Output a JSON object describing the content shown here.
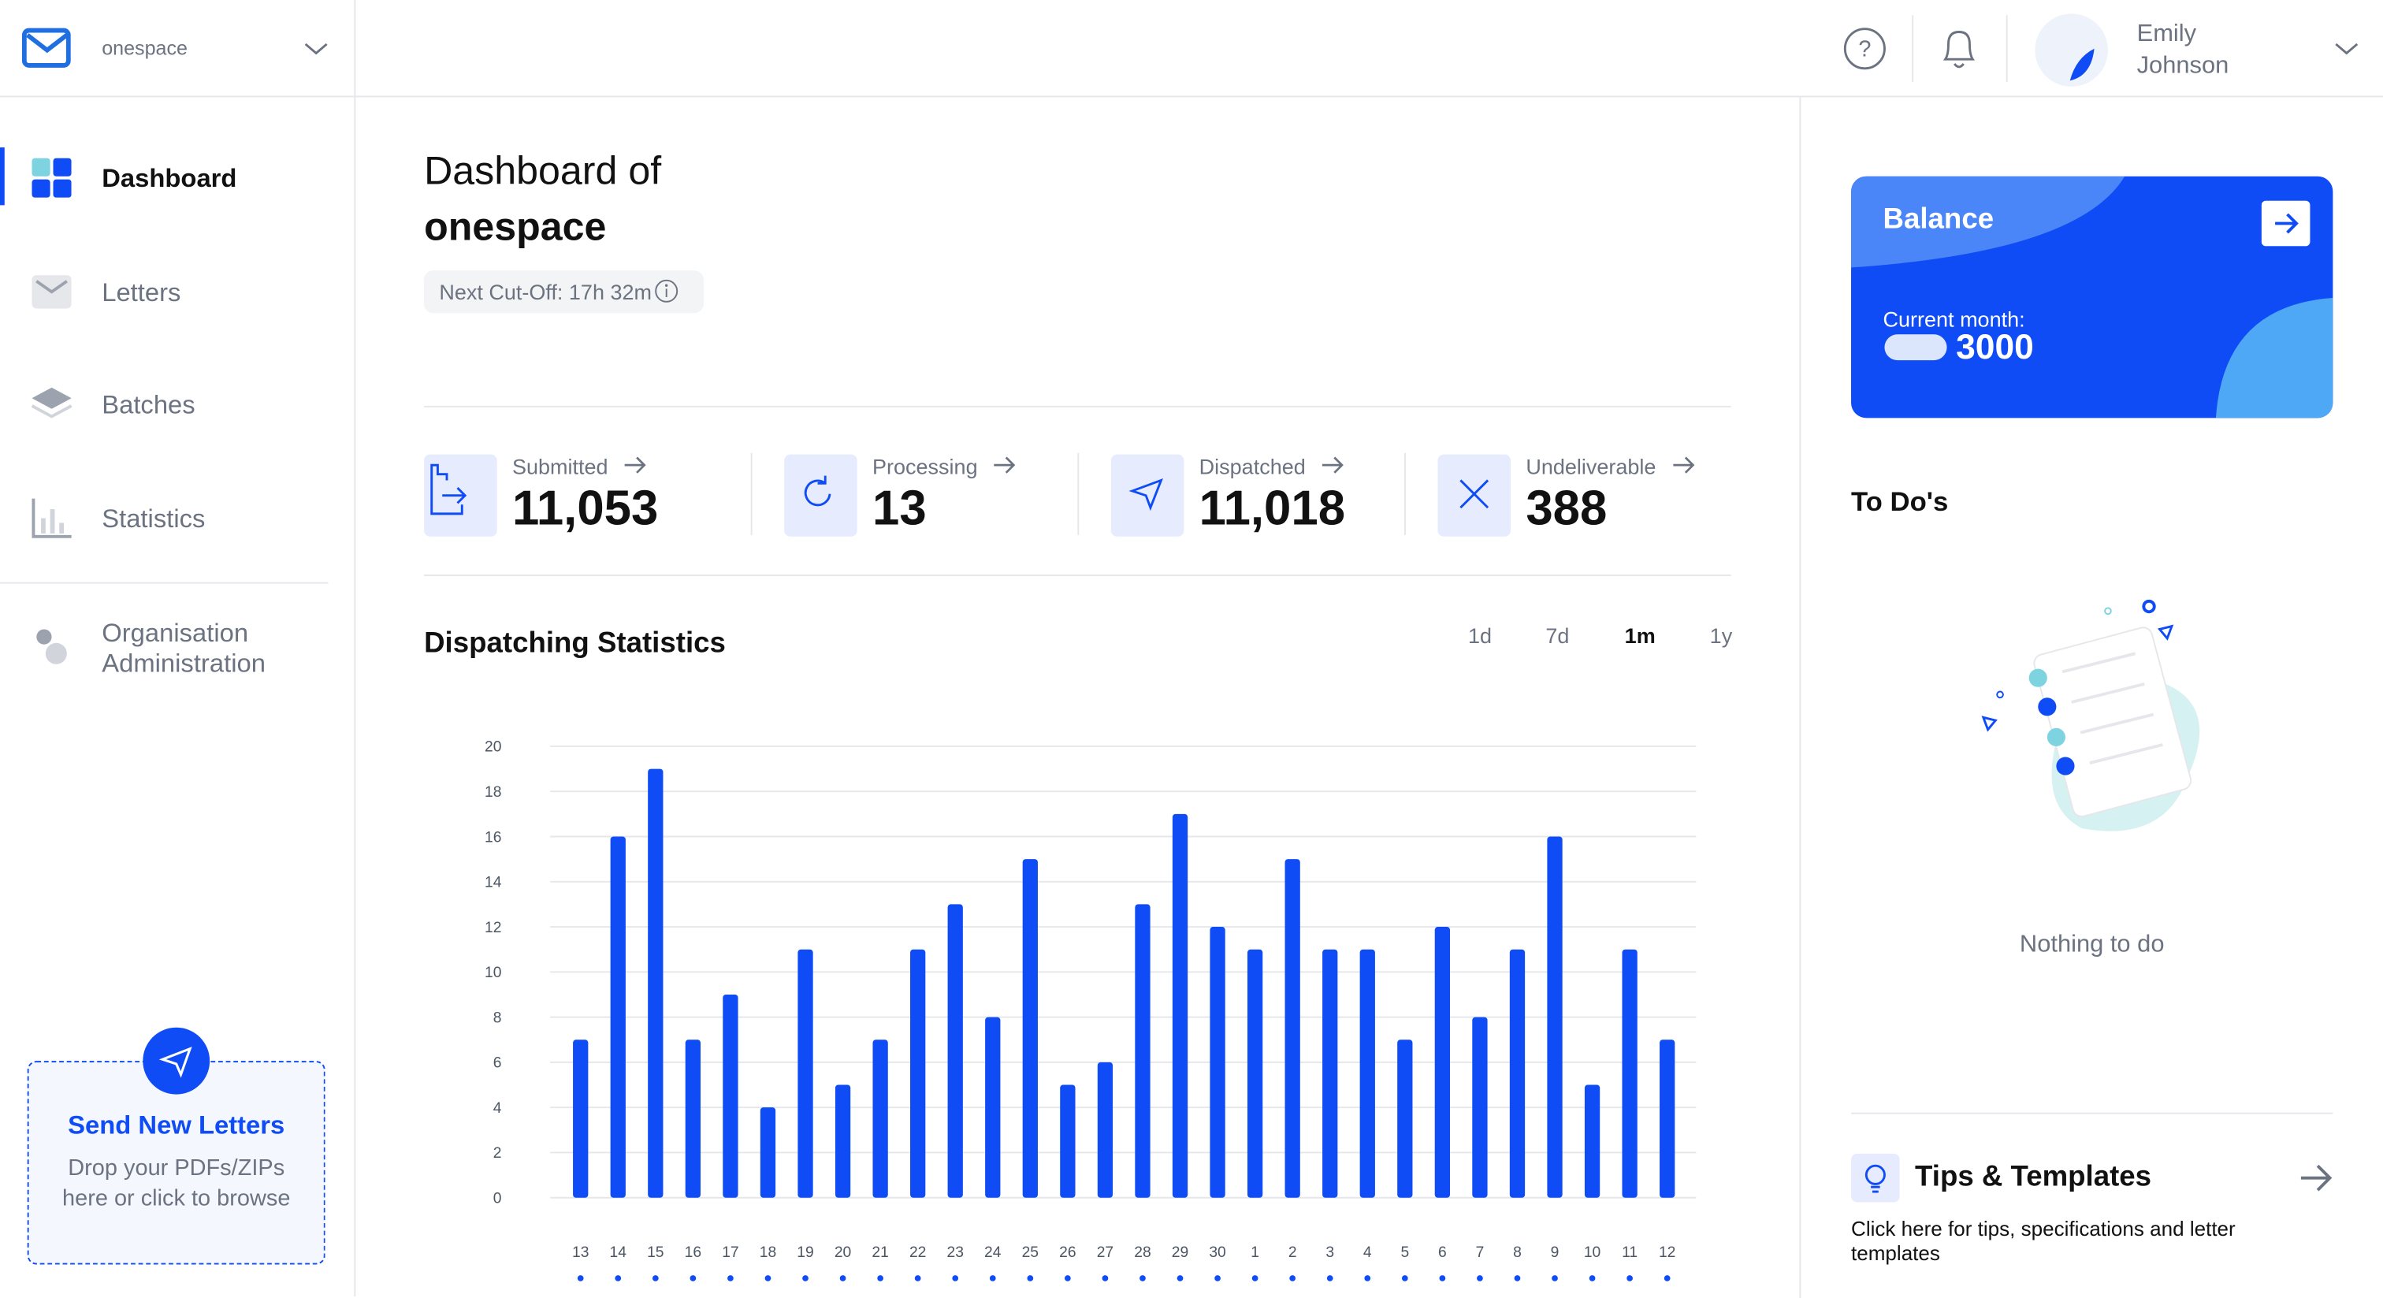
{
  "header": {
    "workspace": "onespace",
    "user_first": "Emily",
    "user_last": "Johnson"
  },
  "sidebar": {
    "nav": [
      "Dashboard",
      "Letters",
      "Batches",
      "Statistics"
    ],
    "org": [
      "Organisation",
      "Administration"
    ],
    "upload_title": "Send New Letters",
    "upload_text": [
      "Drop your PDFs/ZIPs",
      "here or click to browse"
    ]
  },
  "dashboard": {
    "title_line1": "Dashboard of",
    "title_line2": "onespace",
    "cutoff": "Next Cut-Off: 17h 32m",
    "stats": [
      {
        "label": "Submitted",
        "value": "11,053"
      },
      {
        "label": "Processing",
        "value": "13"
      },
      {
        "label": "Dispatched",
        "value": "11,018"
      },
      {
        "label": "Undeliverable",
        "value": "388"
      }
    ],
    "ranges": [
      "1d",
      "7d",
      "1m",
      "1y"
    ],
    "active_range": "1m"
  },
  "chart_data": {
    "type": "bar",
    "title": "Dispatching Statistics",
    "categories": [
      "13",
      "14",
      "15",
      "16",
      "17",
      "18",
      "19",
      "20",
      "21",
      "22",
      "23",
      "24",
      "25",
      "26",
      "27",
      "28",
      "29",
      "30",
      "1",
      "2",
      "3",
      "4",
      "5",
      "6",
      "7",
      "8",
      "9",
      "10",
      "11",
      "12"
    ],
    "values": [
      7,
      16,
      19,
      7,
      9,
      4,
      11,
      5,
      7,
      11,
      13,
      8,
      15,
      5,
      6,
      13,
      17,
      12,
      11,
      15,
      11,
      11,
      7,
      12,
      8,
      11,
      16,
      5,
      11,
      7
    ],
    "color": "#0f4cf5",
    "ylim": [
      0,
      20
    ],
    "yticks": [
      0,
      2,
      4,
      6,
      8,
      10,
      12,
      14,
      16,
      18,
      20
    ],
    "grid": true
  },
  "balance": {
    "title": "Balance",
    "subtitle": "Current month:",
    "amount": "3000"
  },
  "todos": {
    "title": "To Do's",
    "empty": "Nothing to do"
  },
  "tips": {
    "title": "Tips & Templates",
    "text": "Click here for tips, specifications and letter templates"
  }
}
